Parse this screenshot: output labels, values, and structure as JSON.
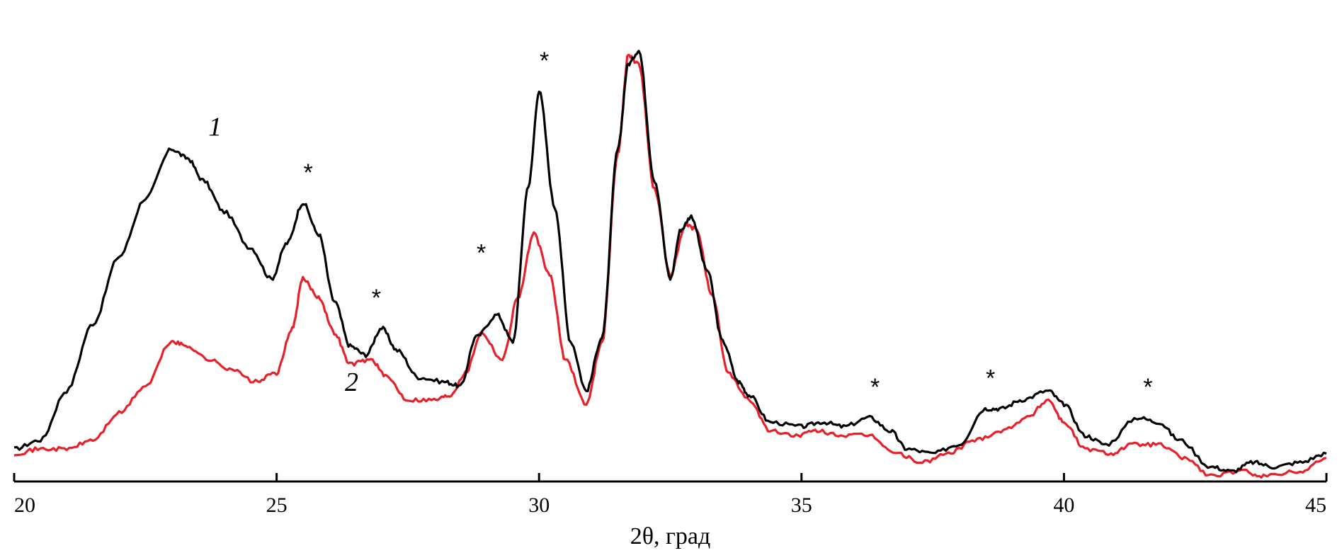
{
  "chart_data": {
    "type": "line",
    "xlabel": "2θ, град",
    "ylabel": "",
    "xlim": [
      20,
      45
    ],
    "ylim": [
      0,
      100
    ],
    "x_ticks": [
      "20",
      "25",
      "30",
      "35",
      "40",
      "45"
    ],
    "y_axis_visible": false,
    "grid": false,
    "colors": {
      "series_1": "#000000",
      "series_2": "#e8202a",
      "axis": "#000000"
    },
    "series": [
      {
        "name": "1",
        "label_position": [
          23.7,
          76
        ],
        "points": [
          [
            20.0,
            6
          ],
          [
            20.5,
            8
          ],
          [
            21.0,
            19
          ],
          [
            21.5,
            34
          ],
          [
            22.0,
            49
          ],
          [
            22.5,
            62
          ],
          [
            23.0,
            73
          ],
          [
            23.3,
            71
          ],
          [
            23.6,
            66
          ],
          [
            24.0,
            59
          ],
          [
            24.5,
            51
          ],
          [
            24.9,
            44
          ],
          [
            25.2,
            52
          ],
          [
            25.5,
            61
          ],
          [
            25.8,
            54
          ],
          [
            26.1,
            39
          ],
          [
            26.4,
            29
          ],
          [
            26.7,
            27
          ],
          [
            27.0,
            33
          ],
          [
            27.3,
            28
          ],
          [
            27.7,
            22
          ],
          [
            28.2,
            21
          ],
          [
            28.5,
            20
          ],
          [
            28.8,
            31
          ],
          [
            29.2,
            36
          ],
          [
            29.5,
            30
          ],
          [
            29.8,
            65
          ],
          [
            30.0,
            86
          ],
          [
            30.3,
            60
          ],
          [
            30.6,
            30
          ],
          [
            30.9,
            19
          ],
          [
            31.2,
            31
          ],
          [
            31.5,
            73
          ],
          [
            31.7,
            92
          ],
          [
            31.9,
            95
          ],
          [
            32.2,
            66
          ],
          [
            32.5,
            44
          ],
          [
            32.7,
            55
          ],
          [
            32.9,
            58
          ],
          [
            33.2,
            46
          ],
          [
            33.5,
            30
          ],
          [
            33.8,
            21
          ],
          [
            34.0,
            18
          ],
          [
            34.4,
            12
          ],
          [
            35.0,
            11
          ],
          [
            35.4,
            12
          ],
          [
            35.8,
            11
          ],
          [
            36.3,
            13
          ],
          [
            36.7,
            10
          ],
          [
            37.0,
            6
          ],
          [
            37.5,
            5
          ],
          [
            38.0,
            7
          ],
          [
            38.5,
            15
          ],
          [
            38.8,
            15
          ],
          [
            39.2,
            17
          ],
          [
            39.7,
            19
          ],
          [
            40.0,
            16
          ],
          [
            40.4,
            9
          ],
          [
            40.8,
            7
          ],
          [
            41.4,
            13
          ],
          [
            41.8,
            12
          ],
          [
            42.2,
            8
          ],
          [
            42.8,
            2
          ],
          [
            43.2,
            1
          ],
          [
            43.6,
            3
          ],
          [
            44.0,
            2
          ],
          [
            44.5,
            3
          ],
          [
            45.0,
            5
          ]
        ]
      },
      {
        "name": "2",
        "label_position": [
          26.3,
          19
        ],
        "points": [
          [
            20.0,
            5
          ],
          [
            20.5,
            6
          ],
          [
            21.0,
            6
          ],
          [
            21.5,
            8
          ],
          [
            22.0,
            14
          ],
          [
            22.5,
            20
          ],
          [
            23.0,
            30
          ],
          [
            23.3,
            29
          ],
          [
            23.7,
            26
          ],
          [
            24.1,
            24
          ],
          [
            24.6,
            21
          ],
          [
            25.0,
            23
          ],
          [
            25.3,
            33
          ],
          [
            25.5,
            44
          ],
          [
            25.8,
            40
          ],
          [
            26.1,
            32
          ],
          [
            26.4,
            25
          ],
          [
            26.8,
            26
          ],
          [
            27.1,
            22
          ],
          [
            27.5,
            17
          ],
          [
            28.0,
            17
          ],
          [
            28.3,
            18
          ],
          [
            28.6,
            23
          ],
          [
            28.9,
            32
          ],
          [
            29.3,
            26
          ],
          [
            29.6,
            40
          ],
          [
            29.9,
            54
          ],
          [
            30.2,
            45
          ],
          [
            30.5,
            26
          ],
          [
            30.9,
            16
          ],
          [
            31.2,
            30
          ],
          [
            31.5,
            72
          ],
          [
            31.7,
            94
          ],
          [
            31.9,
            92
          ],
          [
            32.2,
            64
          ],
          [
            32.5,
            45
          ],
          [
            32.8,
            56
          ],
          [
            33.0,
            55
          ],
          [
            33.3,
            40
          ],
          [
            33.6,
            23
          ],
          [
            34.0,
            17
          ],
          [
            34.4,
            10
          ],
          [
            34.9,
            9
          ],
          [
            35.3,
            10
          ],
          [
            35.8,
            9
          ],
          [
            36.3,
            9
          ],
          [
            36.8,
            5
          ],
          [
            37.3,
            3
          ],
          [
            37.8,
            5
          ],
          [
            38.3,
            8
          ],
          [
            38.8,
            10
          ],
          [
            39.3,
            13
          ],
          [
            39.7,
            17
          ],
          [
            40.0,
            12
          ],
          [
            40.4,
            6
          ],
          [
            40.9,
            5
          ],
          [
            41.3,
            7
          ],
          [
            41.8,
            7
          ],
          [
            42.3,
            4
          ],
          [
            42.8,
            0
          ],
          [
            43.4,
            1
          ],
          [
            43.8,
            0
          ],
          [
            44.5,
            1
          ],
          [
            45.0,
            4
          ]
        ]
      }
    ],
    "annotations": [
      {
        "text": "*",
        "x": 25.6,
        "y": 66
      },
      {
        "text": "*",
        "x": 26.9,
        "y": 38
      },
      {
        "text": "*",
        "x": 28.9,
        "y": 48
      },
      {
        "text": "*",
        "x": 30.1,
        "y": 91
      },
      {
        "text": "*",
        "x": 36.4,
        "y": 18
      },
      {
        "text": "*",
        "x": 38.6,
        "y": 20
      },
      {
        "text": "*",
        "x": 41.6,
        "y": 18
      }
    ]
  }
}
